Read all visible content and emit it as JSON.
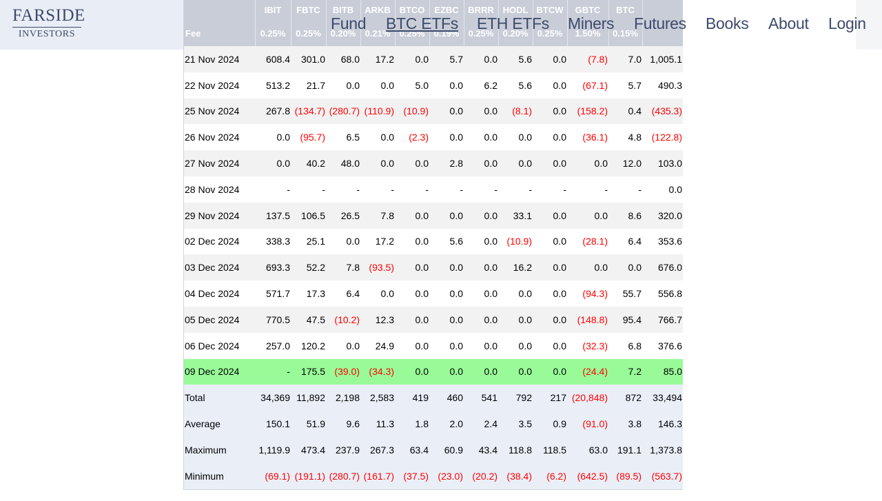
{
  "logo": {
    "line1": "FARSIDE",
    "line2": "INVESTORS"
  },
  "nav": [
    {
      "label": "Fund",
      "active": false
    },
    {
      "label": "BTC ETFs",
      "active": true
    },
    {
      "label": "ETH ETFs",
      "active": false
    },
    {
      "label": "Miners",
      "active": false
    },
    {
      "label": "Futures",
      "active": false
    },
    {
      "label": "Books",
      "active": false
    },
    {
      "label": "About",
      "active": false
    },
    {
      "label": "Login",
      "active": false
    }
  ],
  "table": {
    "tickers": [
      "",
      "IBIT",
      "FBTC",
      "BITB",
      "ARKB",
      "BTCO",
      "EZBC",
      "BRRR",
      "HODL",
      "BTCW",
      "GBTC",
      "BTC",
      ""
    ],
    "fees": [
      "Fee",
      "0.25%",
      "0.25%",
      "0.20%",
      "0.21%",
      "0.25%",
      "0.19%",
      "0.25%",
      "0.20%",
      "0.25%",
      "1.50%",
      "0.15%",
      ""
    ],
    "rows": [
      {
        "type": "odd",
        "cells": [
          "21 Nov 2024",
          "608.4",
          "301.0",
          "68.0",
          "17.2",
          "0.0",
          "5.7",
          "0.0",
          "5.6",
          "0.0",
          "(7.8)",
          "7.0",
          "1,005.1"
        ]
      },
      {
        "type": "even",
        "cells": [
          "22 Nov 2024",
          "513.2",
          "21.7",
          "0.0",
          "0.0",
          "5.0",
          "0.0",
          "6.2",
          "5.6",
          "0.0",
          "(67.1)",
          "5.7",
          "490.3"
        ]
      },
      {
        "type": "odd",
        "cells": [
          "25 Nov 2024",
          "267.8",
          "(134.7)",
          "(280.7)",
          "(110.9)",
          "(10.9)",
          "0.0",
          "0.0",
          "(8.1)",
          "0.0",
          "(158.2)",
          "0.4",
          "(435.3)"
        ]
      },
      {
        "type": "even",
        "cells": [
          "26 Nov 2024",
          "0.0",
          "(95.7)",
          "6.5",
          "0.0",
          "(2.3)",
          "0.0",
          "0.0",
          "0.0",
          "0.0",
          "(36.1)",
          "4.8",
          "(122.8)"
        ]
      },
      {
        "type": "odd",
        "cells": [
          "27 Nov 2024",
          "0.0",
          "40.2",
          "48.0",
          "0.0",
          "0.0",
          "2.8",
          "0.0",
          "0.0",
          "0.0",
          "0.0",
          "12.0",
          "103.0"
        ]
      },
      {
        "type": "even",
        "cells": [
          "28 Nov 2024",
          "-",
          "-",
          "-",
          "-",
          "-",
          "-",
          "-",
          "-",
          "-",
          "-",
          "-",
          "0.0"
        ]
      },
      {
        "type": "odd",
        "cells": [
          "29 Nov 2024",
          "137.5",
          "106.5",
          "26.5",
          "7.8",
          "0.0",
          "0.0",
          "0.0",
          "33.1",
          "0.0",
          "0.0",
          "8.6",
          "320.0"
        ]
      },
      {
        "type": "even",
        "cells": [
          "02 Dec 2024",
          "338.3",
          "25.1",
          "0.0",
          "17.2",
          "0.0",
          "5.6",
          "0.0",
          "(10.9)",
          "0.0",
          "(28.1)",
          "6.4",
          "353.6"
        ]
      },
      {
        "type": "odd",
        "cells": [
          "03 Dec 2024",
          "693.3",
          "52.2",
          "7.8",
          "(93.5)",
          "0.0",
          "0.0",
          "0.0",
          "16.2",
          "0.0",
          "0.0",
          "0.0",
          "676.0"
        ]
      },
      {
        "type": "even",
        "cells": [
          "04 Dec 2024",
          "571.7",
          "17.3",
          "6.4",
          "0.0",
          "0.0",
          "0.0",
          "0.0",
          "0.0",
          "0.0",
          "(94.3)",
          "55.7",
          "556.8"
        ]
      },
      {
        "type": "odd",
        "cells": [
          "05 Dec 2024",
          "770.5",
          "47.5",
          "(10.2)",
          "12.3",
          "0.0",
          "0.0",
          "0.0",
          "0.0",
          "0.0",
          "(148.8)",
          "95.4",
          "766.7"
        ]
      },
      {
        "type": "even",
        "cells": [
          "06 Dec 2024",
          "257.0",
          "120.2",
          "0.0",
          "24.9",
          "0.0",
          "0.0",
          "0.0",
          "0.0",
          "0.0",
          "(32.3)",
          "6.8",
          "376.6"
        ]
      },
      {
        "type": "hl",
        "cells": [
          "09 Dec 2024",
          "-",
          "175.5",
          "(39.0)",
          "(34.3)",
          "0.0",
          "0.0",
          "0.0",
          "0.0",
          "0.0",
          "(24.4)",
          "7.2",
          "85.0"
        ]
      },
      {
        "type": "stat",
        "cells": [
          "Total",
          "34,369",
          "11,892",
          "2,198",
          "2,583",
          "419",
          "460",
          "541",
          "792",
          "217",
          "(20,848)",
          "872",
          "33,494"
        ]
      },
      {
        "type": "stat",
        "cells": [
          "Average",
          "150.1",
          "51.9",
          "9.6",
          "11.3",
          "1.8",
          "2.0",
          "2.4",
          "3.5",
          "0.9",
          "(91.0)",
          "3.8",
          "146.3"
        ]
      },
      {
        "type": "stat",
        "cells": [
          "Maximum",
          "1,119.9",
          "473.4",
          "237.9",
          "267.3",
          "63.4",
          "60.9",
          "43.4",
          "118.8",
          "118.5",
          "63.0",
          "191.1",
          "1,373.8"
        ]
      },
      {
        "type": "stat",
        "cells": [
          "Minimum",
          "(69.1)",
          "(191.1)",
          "(280.7)",
          "(161.7)",
          "(37.5)",
          "(23.0)",
          "(20.2)",
          "(38.4)",
          "(6.2)",
          "(642.5)",
          "(89.5)",
          "(563.7)"
        ]
      }
    ]
  },
  "colors": {
    "brand": "#3c4a6b",
    "negative": "#ff0000",
    "highlight_row": "#98fb98",
    "header_bg": "#c9cdd8"
  }
}
